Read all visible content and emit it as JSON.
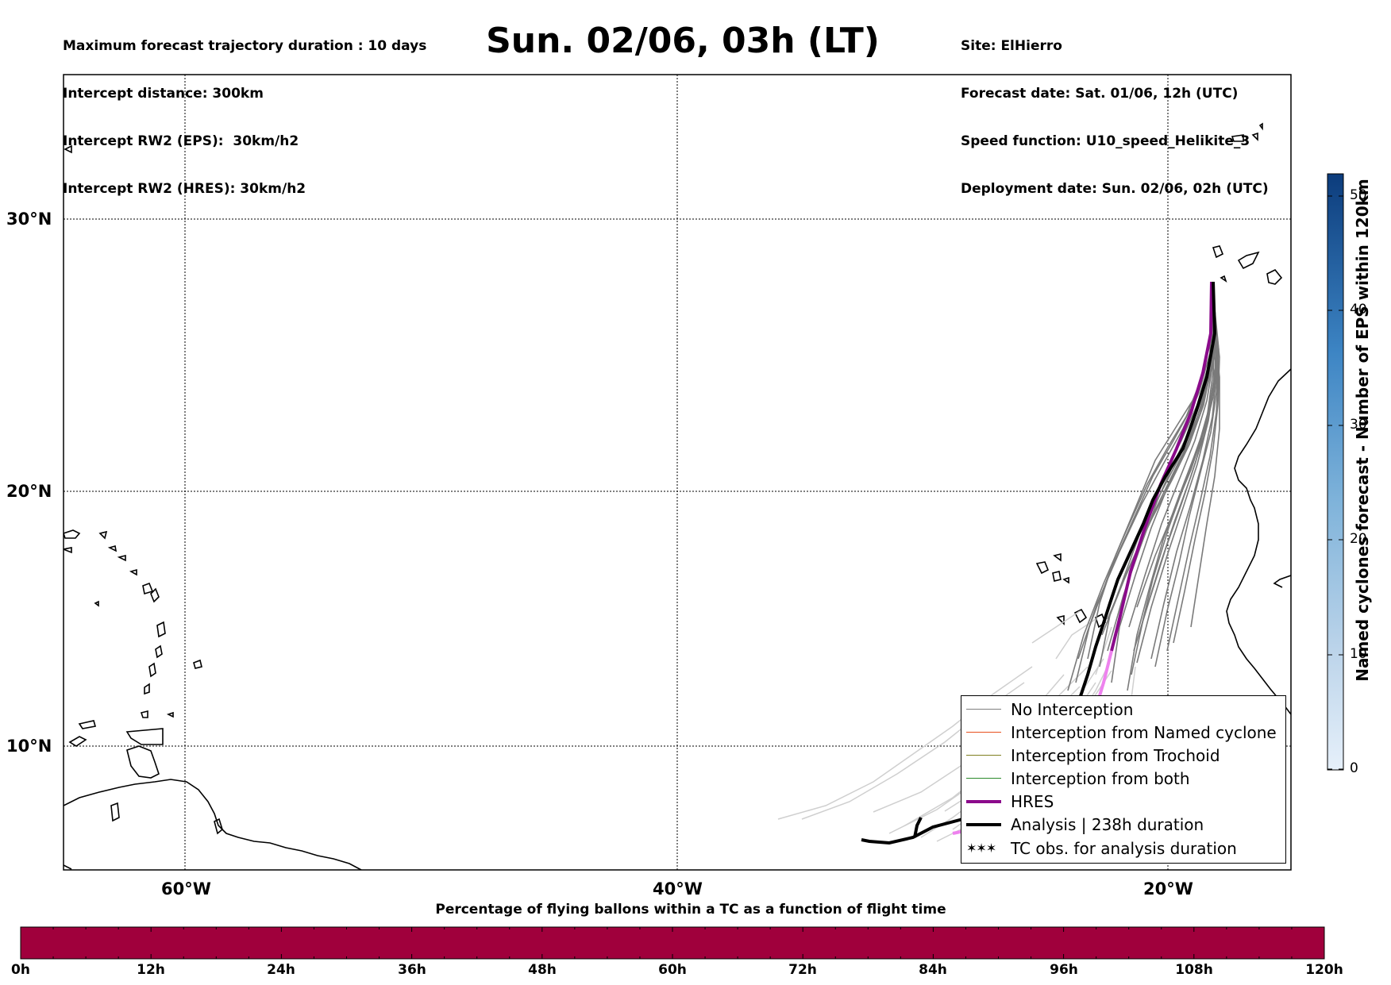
{
  "header": {
    "left_lines": [
      "Maximum forecast trajectory duration : 10 days",
      "Intercept distance: 300km",
      "Intercept RW2 (EPS):  30km/h2",
      "Intercept RW2 (HRES): 30km/h2"
    ],
    "title": "Sun. 02/06, 03h (LT)",
    "right_lines": [
      "Site: ElHierro",
      "Forecast date: Sat. 01/06, 12h (UTC)",
      "Speed function: U10_speed_Helikite_3",
      "Deployment date: Sun. 02/06, 02h (UTC)"
    ]
  },
  "map": {
    "lat_labels": [
      "30°N",
      "20°N",
      "10°N"
    ],
    "lon_labels": [
      "60°W",
      "40°W",
      "20°W"
    ],
    "lat_range": [
      5.3,
      34.6
    ],
    "lon_range": [
      -65,
      -15
    ],
    "grid": true
  },
  "legend": {
    "items": [
      {
        "label": "No Interception",
        "color": "#808080",
        "style": "thin"
      },
      {
        "label": "Interception from Named cyclone",
        "color": "#e8501e",
        "style": "thin"
      },
      {
        "label": "Interception from Trochoid",
        "color": "#808020",
        "style": "thin"
      },
      {
        "label": "Interception from both",
        "color": "#2a8a2a",
        "style": "thin"
      },
      {
        "label": "HRES",
        "color": "#8b0a8b",
        "style": "thick"
      },
      {
        "label": "Analysis | 238h duration",
        "color": "#000000",
        "style": "thick"
      },
      {
        "label": "TC obs. for analysis duration",
        "color": "#000000",
        "style": "symbol",
        "symbol": "✶✶✶"
      }
    ]
  },
  "colorbar": {
    "title": "Named cyclones forecast - Number of EPS within 120km",
    "ticks": [
      "0",
      "10",
      "20",
      "30",
      "40",
      "50"
    ],
    "range": [
      0,
      52
    ]
  },
  "hbar": {
    "title": "Percentage of flying ballons within a TC as a function of flight time",
    "ticks": [
      "0h",
      "12h",
      "24h",
      "36h",
      "48h",
      "60h",
      "72h",
      "84h",
      "96h",
      "108h",
      "120h"
    ],
    "color": "#a0003c",
    "percent": 0
  }
}
